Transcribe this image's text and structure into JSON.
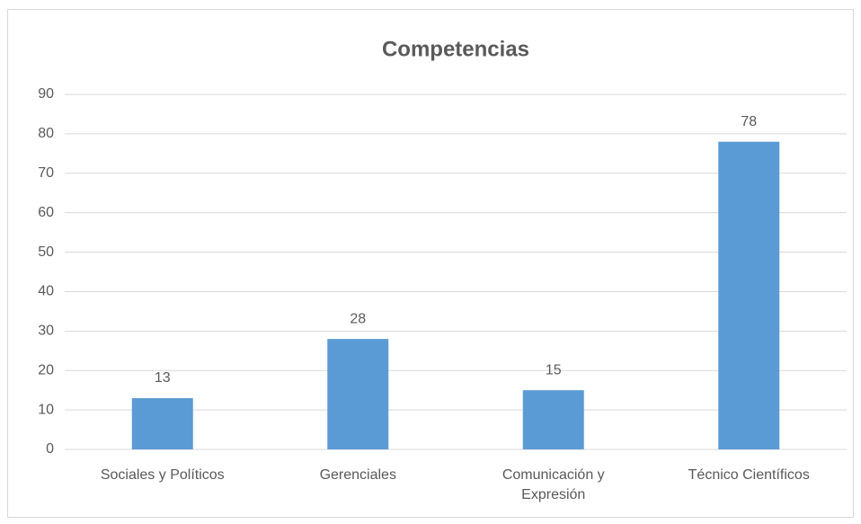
{
  "chart_data": {
    "type": "bar",
    "title": "Competencias",
    "categories": [
      "Sociales y Políticos",
      "Gerenciales",
      "Comunicación y Expresión",
      "Técnico Científicos"
    ],
    "values": [
      13,
      28,
      15,
      78
    ],
    "color": "#5b9bd5",
    "ylim": [
      0,
      90
    ],
    "yticks": [
      0,
      10,
      20,
      30,
      40,
      50,
      60,
      70,
      80,
      90
    ],
    "grid": true
  }
}
